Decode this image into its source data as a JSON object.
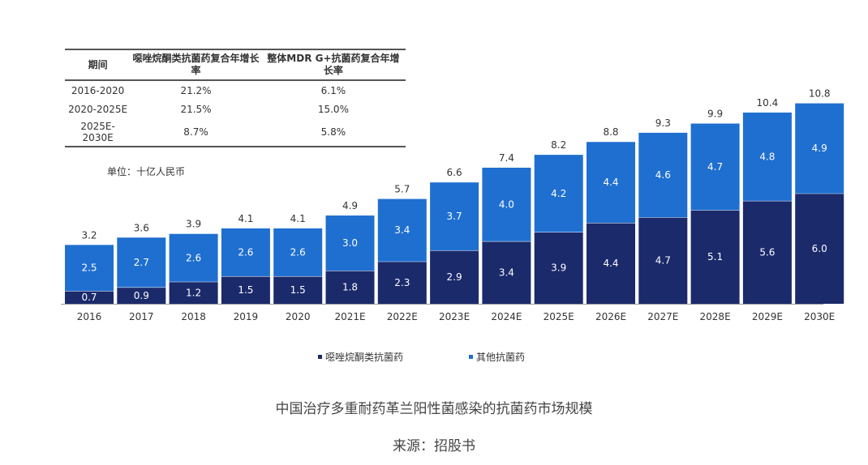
{
  "table": {
    "headers": [
      "期间",
      "噁唑烷酮类抗菌药复合年增长率",
      "整体MDR G+抗菌药复合年增长率"
    ],
    "rows": [
      [
        "2016-2020",
        "21.2%",
        "6.1%"
      ],
      [
        "2020-2025E",
        "21.5%",
        "15.0%"
      ],
      [
        "2025E-2030E",
        "8.7%",
        "5.8%"
      ]
    ]
  },
  "unit": "单位：十亿人民币",
  "caption": "中国治疗多重耐药革兰阳性菌感染的抗菌药市场规模",
  "source": "来源：招股书",
  "chart_data": {
    "type": "bar",
    "stacked": true,
    "categories": [
      "2016",
      "2017",
      "2018",
      "2019",
      "2020",
      "2021E",
      "2022E",
      "2023E",
      "2024E",
      "2025E",
      "2026E",
      "2027E",
      "2028E",
      "2029E",
      "2030E"
    ],
    "series": [
      {
        "name": "噁唑烷酮类抗菌药",
        "color": "#1b2a6b",
        "values": [
          0.7,
          0.9,
          1.2,
          1.5,
          1.5,
          1.8,
          2.3,
          2.9,
          3.4,
          3.9,
          4.4,
          4.7,
          5.1,
          5.6,
          6.0
        ]
      },
      {
        "name": "其他抗菌药",
        "color": "#1f6fd0",
        "values": [
          2.5,
          2.7,
          2.6,
          2.6,
          2.6,
          3.0,
          3.4,
          3.7,
          4.0,
          4.2,
          4.4,
          4.6,
          4.7,
          4.8,
          4.9
        ]
      }
    ],
    "totals": [
      3.2,
      3.6,
      3.9,
      4.1,
      4.1,
      4.9,
      5.7,
      6.6,
      7.4,
      8.2,
      8.8,
      9.3,
      9.9,
      10.4,
      10.8
    ],
    "legend_position": "bottom",
    "grid": false
  }
}
